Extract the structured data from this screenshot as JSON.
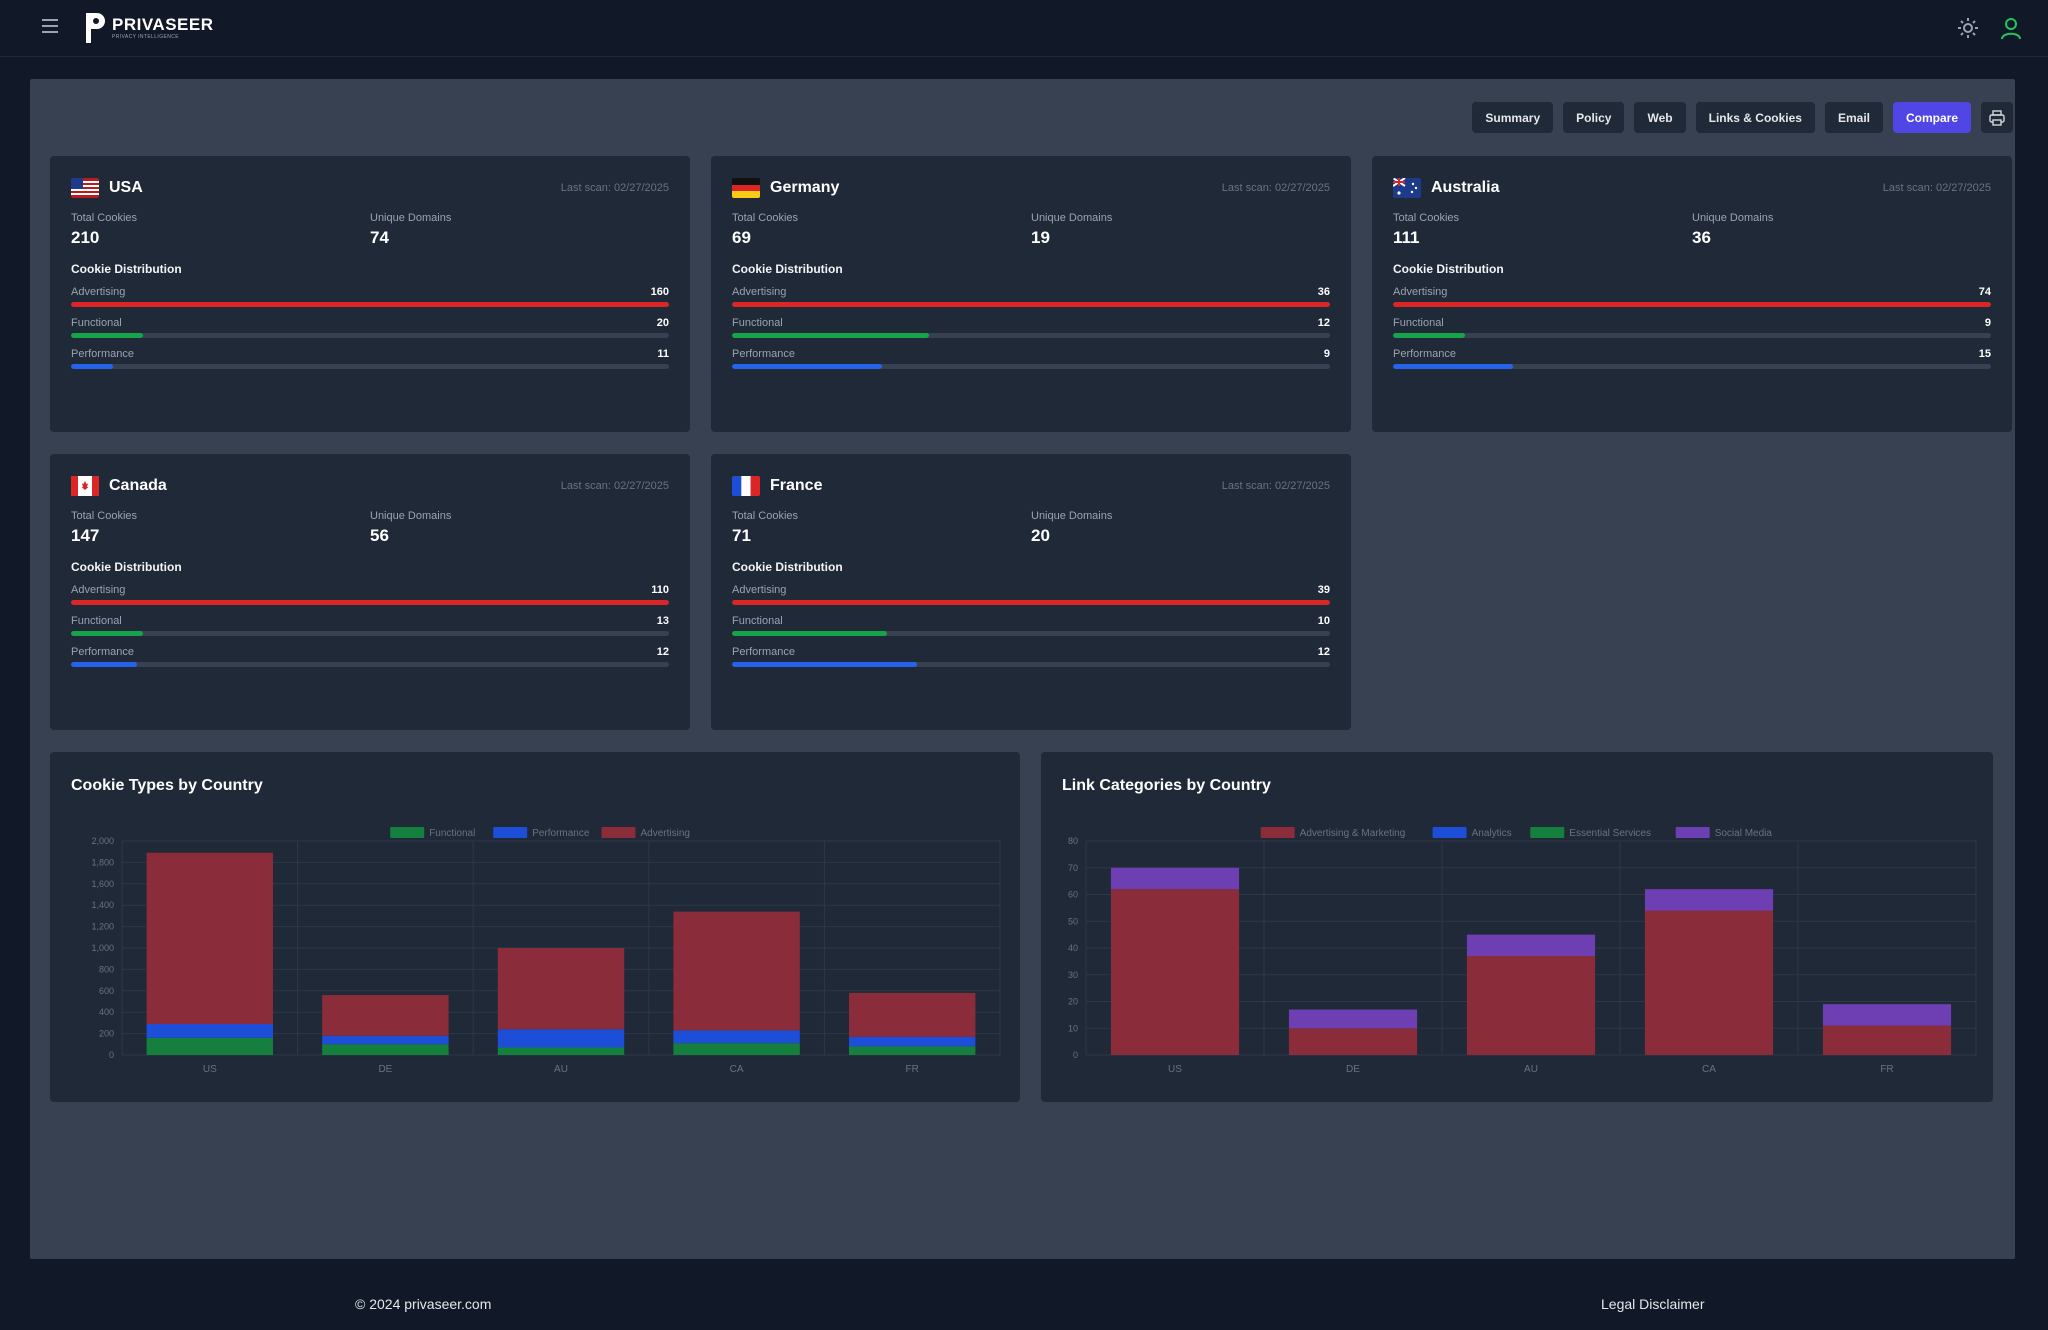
{
  "header": {
    "logo_name": "PRIVASEER",
    "logo_tagline": "PRIVACY INTELLIGENCE",
    "menu_icon": "hamburger-menu-icon",
    "theme_icon": "sun-icon",
    "user_icon": "user-icon"
  },
  "tabs": [
    "Summary",
    "Policy",
    "Web",
    "Links & Cookies",
    "Email",
    "Compare"
  ],
  "active_tab": "Compare",
  "print_icon": "printer-icon",
  "colors": {
    "advertising": "#dc2626",
    "functional": "#16a34a",
    "performance": "#2563eb",
    "accent": "#4f46e5"
  },
  "labels": {
    "total_cookies": "Total Cookies",
    "unique_domains": "Unique Domains",
    "cookie_distribution": "Cookie Distribution",
    "advertising": "Advertising",
    "functional": "Functional",
    "performance": "Performance"
  },
  "countries": [
    {
      "name": "USA",
      "last_scan": "Last scan: 02/27/2025",
      "total_cookies": "210",
      "unique_domains": "74",
      "advertising": "160",
      "functional": "20",
      "performance": "11",
      "adv_frac": 1.0,
      "fun_frac": 0.12,
      "perf_frac": 0.07
    },
    {
      "name": "Germany",
      "last_scan": "Last scan: 02/27/2025",
      "total_cookies": "69",
      "unique_domains": "19",
      "advertising": "36",
      "functional": "12",
      "performance": "9",
      "adv_frac": 1.0,
      "fun_frac": 0.33,
      "perf_frac": 0.25
    },
    {
      "name": "Australia",
      "last_scan": "Last scan: 02/27/2025",
      "total_cookies": "111",
      "unique_domains": "36",
      "advertising": "74",
      "functional": "9",
      "performance": "15",
      "adv_frac": 1.0,
      "fun_frac": 0.12,
      "perf_frac": 0.2
    },
    {
      "name": "Canada",
      "last_scan": "Last scan: 02/27/2025",
      "total_cookies": "147",
      "unique_domains": "56",
      "advertising": "110",
      "functional": "13",
      "performance": "12",
      "adv_frac": 1.0,
      "fun_frac": 0.12,
      "perf_frac": 0.11
    },
    {
      "name": "France",
      "last_scan": "Last scan: 02/27/2025",
      "total_cookies": "71",
      "unique_domains": "20",
      "advertising": "39",
      "functional": "10",
      "performance": "12",
      "adv_frac": 1.0,
      "fun_frac": 0.26,
      "perf_frac": 0.31
    }
  ],
  "chart_data": [
    {
      "type": "bar",
      "title": "Cookie Types by Country",
      "categories": [
        "US",
        "DE",
        "AU",
        "CA",
        "FR"
      ],
      "series": [
        {
          "name": "Functional",
          "color": "#15803d",
          "values": [
            160,
            100,
            70,
            110,
            80
          ]
        },
        {
          "name": "Performance",
          "color": "#1d4ed8",
          "values": [
            130,
            80,
            170,
            120,
            90
          ]
        },
        {
          "name": "Advertising",
          "color": "#8b2c3a",
          "values": [
            1600,
            380,
            760,
            1110,
            410
          ]
        }
      ],
      "stacked": true,
      "ylim": [
        0,
        2000
      ],
      "yticks": [
        "0",
        "200",
        "400",
        "600",
        "800",
        "1,000",
        "1,200",
        "1,400",
        "1,600",
        "1,800",
        "2,000"
      ],
      "legend": "top-center",
      "grid": true
    },
    {
      "type": "bar",
      "title": "Link Categories by Country",
      "categories": [
        "US",
        "DE",
        "AU",
        "CA",
        "FR"
      ],
      "series": [
        {
          "name": "Advertising & Marketing",
          "color": "#8b2c3a",
          "values": [
            62,
            10,
            37,
            54,
            11
          ]
        },
        {
          "name": "Analytics",
          "color": "#1d4ed8",
          "values": [
            0,
            0,
            0,
            0,
            0
          ]
        },
        {
          "name": "Essential Services",
          "color": "#15803d",
          "values": [
            0,
            0,
            0,
            0,
            0
          ]
        },
        {
          "name": "Social Media",
          "color": "#6d3fb3",
          "values": [
            8,
            7,
            8,
            8,
            8
          ]
        }
      ],
      "stacked": true,
      "ylim": [
        0,
        80
      ],
      "yticks": [
        "0",
        "10",
        "20",
        "30",
        "40",
        "50",
        "60",
        "70",
        "80"
      ],
      "legend": "top-center",
      "grid": true
    }
  ],
  "footer": {
    "copyright": "© 2024 privaseer.com",
    "legal": "Legal Disclaimer"
  }
}
